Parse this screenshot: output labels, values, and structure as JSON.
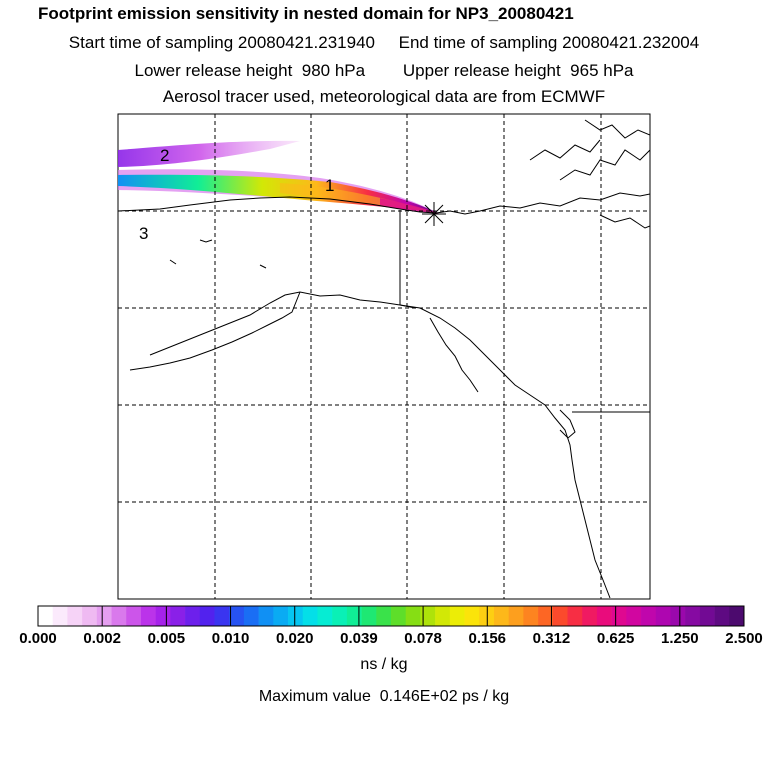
{
  "header": {
    "title": "Footprint emission sensitivity in nested domain for NP3_20080421",
    "start_time": "Start time of sampling 20080421.231940",
    "end_time": "End time of sampling 20080421.232004",
    "lower_release": "Lower release height  980 hPa",
    "upper_release": "Upper release height  965 hPa",
    "tracer_info": "Aerosol tracer used, meteorological data are from ECMWF"
  },
  "map": {
    "plume_labels": [
      "1",
      "2",
      "3"
    ],
    "release_marker": "release-star"
  },
  "colorbar": {
    "tick_labels": [
      "0.000",
      "0.002",
      "0.005",
      "0.010",
      "0.020",
      "0.039",
      "0.078",
      "0.156",
      "0.312",
      "0.625",
      "1.250",
      "2.500"
    ],
    "colors": [
      "#ffffff",
      "#fbeafc",
      "#f6d3f7",
      "#efbaf2",
      "#e59ff0",
      "#d979ec",
      "#cc55ea",
      "#bb33ea",
      "#a622ea",
      "#8a20e8",
      "#6d20ec",
      "#5222ee",
      "#3a35f0",
      "#2753f2",
      "#1a6ef4",
      "#1090f4",
      "#0aabf3",
      "#06c6f1",
      "#04dfe8",
      "#06ecd3",
      "#0af0b6",
      "#10ee96",
      "#1ee873",
      "#3ae24a",
      "#5ede2a",
      "#86de14",
      "#aee20a",
      "#d2e806",
      "#eced06",
      "#fbe40a",
      "#fdcf12",
      "#fdb81a",
      "#fd9f1e",
      "#fd8420",
      "#fd6624",
      "#fb4a2c",
      "#f72e44",
      "#f01a62",
      "#e90c7c",
      "#df0890",
      "#d106a0",
      "#c006ac",
      "#ae06b0",
      "#9a08ac",
      "#860aa2",
      "#720a94",
      "#5e0a82",
      "#4c0a6e"
    ],
    "unit": "ns / kg"
  },
  "footer": {
    "max_value": "Maximum value  0.146E+02 ps / kg"
  }
}
